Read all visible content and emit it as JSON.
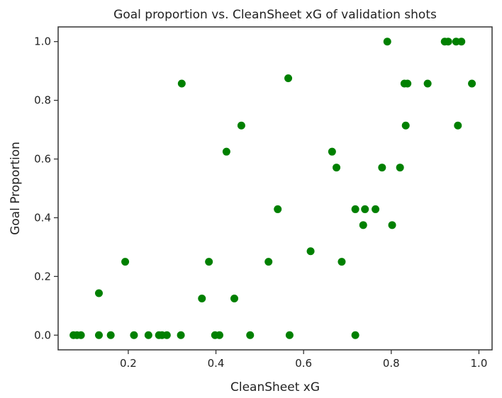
{
  "chart_data": {
    "type": "scatter",
    "title": "Goal proportion vs. CleanSheet xG of validation shots",
    "xlabel": "CleanSheet xG",
    "ylabel": "Goal Proportion",
    "xlim": [
      0.04,
      1.03
    ],
    "ylim": [
      -0.05,
      1.05
    ],
    "xticks": [
      "0.2",
      "0.4",
      "0.6",
      "0.8",
      "1.0"
    ],
    "yticks": [
      "0.0",
      "0.2",
      "0.4",
      "0.6",
      "0.8",
      "1.0"
    ],
    "grid": false,
    "marker_color": "#008000",
    "series": [
      {
        "points": [
          [
            0.075,
            0.0
          ],
          [
            0.083,
            0.0
          ],
          [
            0.092,
            0.0
          ],
          [
            0.133,
            0.0
          ],
          [
            0.16,
            0.0
          ],
          [
            0.213,
            0.0
          ],
          [
            0.246,
            0.0
          ],
          [
            0.27,
            0.0
          ],
          [
            0.277,
            0.0
          ],
          [
            0.288,
            0.0
          ],
          [
            0.32,
            0.0
          ],
          [
            0.398,
            0.0
          ],
          [
            0.408,
            0.0
          ],
          [
            0.478,
            0.0
          ],
          [
            0.568,
            0.0
          ],
          [
            0.718,
            0.0
          ],
          [
            0.133,
            0.143
          ],
          [
            0.193,
            0.25
          ],
          [
            0.322,
            0.857
          ],
          [
            0.368,
            0.125
          ],
          [
            0.384,
            0.25
          ],
          [
            0.442,
            0.125
          ],
          [
            0.424,
            0.625
          ],
          [
            0.458,
            0.714
          ],
          [
            0.52,
            0.25
          ],
          [
            0.541,
            0.429
          ],
          [
            0.565,
            0.875
          ],
          [
            0.616,
            0.286
          ],
          [
            0.665,
            0.625
          ],
          [
            0.675,
            0.571
          ],
          [
            0.687,
            0.25
          ],
          [
            0.718,
            0.429
          ],
          [
            0.736,
            0.375
          ],
          [
            0.74,
            0.429
          ],
          [
            0.764,
            0.429
          ],
          [
            0.779,
            0.571
          ],
          [
            0.791,
            1.0
          ],
          [
            0.802,
            0.375
          ],
          [
            0.82,
            0.571
          ],
          [
            0.83,
            0.857
          ],
          [
            0.833,
            0.714
          ],
          [
            0.837,
            0.857
          ],
          [
            0.883,
            0.857
          ],
          [
            0.922,
            1.0
          ],
          [
            0.93,
            1.0
          ],
          [
            0.948,
            1.0
          ],
          [
            0.952,
            0.714
          ],
          [
            0.96,
            1.0
          ],
          [
            0.984,
            0.857
          ]
        ]
      }
    ]
  }
}
